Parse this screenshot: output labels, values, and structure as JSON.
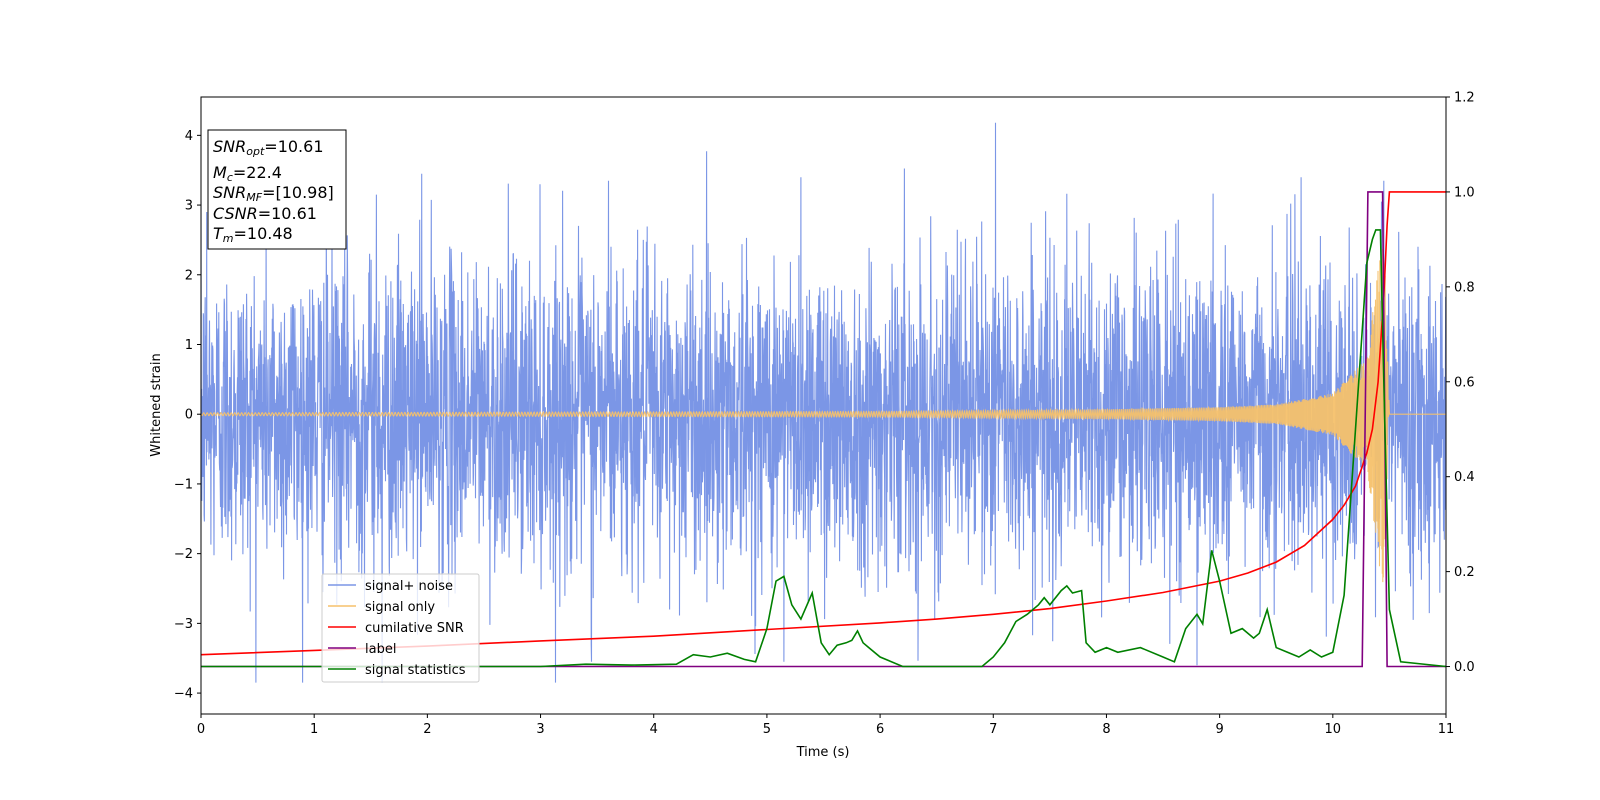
{
  "chart_data": {
    "type": "line",
    "xlabel": "Time (s)",
    "ylabel_left": "Whitened strain",
    "ylabel_right": "",
    "xlim": [
      0,
      11
    ],
    "ylim_left": [
      -4.3,
      4.55
    ],
    "ylim_right": [
      -0.1,
      1.2
    ],
    "x_ticks": [
      0,
      1,
      2,
      3,
      4,
      5,
      6,
      7,
      8,
      9,
      10,
      11
    ],
    "y_ticks_left": [
      -4,
      -3,
      -2,
      -1,
      0,
      1,
      2,
      3,
      4
    ],
    "y_ticks_right": [
      0.0,
      0.2,
      0.4,
      0.6,
      0.8,
      1.0,
      1.2
    ],
    "grid": false,
    "legend_position": "lower-left",
    "info_box": {
      "snr_opt": {
        "base": "SNR",
        "sub": "opt",
        "value": "=10.61"
      },
      "mc": {
        "base": "M",
        "sub": "c",
        "value": "=22.4"
      },
      "snr_mf": {
        "base": "SNR",
        "sub": "MF",
        "value": "=[10.98]"
      },
      "csnr": {
        "base": "CSNR",
        "value": "=10.61"
      },
      "tm": {
        "base": "T",
        "sub": "m",
        "value": "=10.48"
      }
    },
    "series": [
      {
        "name": "signal+ noise",
        "axis": "left",
        "color": "#7b96e6",
        "kind": "noise",
        "amplitude_typical": 1.1,
        "x_range": [
          0,
          11
        ],
        "y_range": [
          -3.85,
          4.18
        ],
        "notable_peaks": [
          {
            "x": 0.05,
            "y": 2.9
          },
          {
            "x": 1.55,
            "y": 3.15
          },
          {
            "x": 1.95,
            "y": 3.45
          },
          {
            "x": 3.6,
            "y": 3.35
          },
          {
            "x": 5.3,
            "y": 3.4
          },
          {
            "x": 7.02,
            "y": 4.18
          },
          {
            "x": 9.72,
            "y": 3.4
          },
          {
            "x": 10.45,
            "y": 3.35
          },
          {
            "x": 1.6,
            "y": -3.85
          },
          {
            "x": 3.45,
            "y": -3.55
          },
          {
            "x": 5.15,
            "y": -3.55
          },
          {
            "x": 8.8,
            "y": -3.6
          }
        ]
      },
      {
        "name": "signal only",
        "axis": "left",
        "color": "#f5c16b",
        "kind": "chirp",
        "envelope": [
          {
            "x": 0,
            "y": 0.02
          },
          {
            "x": 6,
            "y": 0.04
          },
          {
            "x": 8,
            "y": 0.07
          },
          {
            "x": 9,
            "y": 0.1
          },
          {
            "x": 9.5,
            "y": 0.14
          },
          {
            "x": 10.0,
            "y": 0.3
          },
          {
            "x": 10.3,
            "y": 0.8
          },
          {
            "x": 10.45,
            "y": 2.7
          },
          {
            "x": 10.5,
            "y": 0.0
          },
          {
            "x": 11,
            "y": 0.0
          }
        ]
      },
      {
        "name": "cumilative SNR",
        "axis": "right",
        "color": "#ff0000",
        "x": [
          0,
          1,
          2,
          3,
          4,
          5,
          6,
          6.5,
          7,
          7.5,
          8,
          8.5,
          9,
          9.25,
          9.5,
          9.75,
          10,
          10.1,
          10.2,
          10.3,
          10.35,
          10.4,
          10.45,
          10.48,
          10.5,
          10.55,
          11
        ],
        "y": [
          0.025,
          0.034,
          0.043,
          0.054,
          0.064,
          0.078,
          0.092,
          0.1,
          0.11,
          0.122,
          0.138,
          0.156,
          0.18,
          0.197,
          0.22,
          0.255,
          0.31,
          0.34,
          0.38,
          0.45,
          0.5,
          0.6,
          0.78,
          0.93,
          1.0,
          1.0,
          1.0
        ]
      },
      {
        "name": "label",
        "axis": "right",
        "color": "#800080",
        "x": [
          0,
          10.26,
          10.31,
          10.44,
          10.48,
          10.5,
          11
        ],
        "y": [
          0,
          0,
          1.0,
          1.0,
          0,
          0,
          0
        ]
      },
      {
        "name": "signal statistics",
        "axis": "right",
        "color": "#008000",
        "x": [
          0,
          0.3,
          1.0,
          2.0,
          3.0,
          3.4,
          3.8,
          4.2,
          4.35,
          4.5,
          4.65,
          4.8,
          4.9,
          5.0,
          5.08,
          5.15,
          5.22,
          5.3,
          5.4,
          5.48,
          5.55,
          5.62,
          5.7,
          5.75,
          5.8,
          5.85,
          5.9,
          6.0,
          6.2,
          6.5,
          6.9,
          7.0,
          7.1,
          7.2,
          7.3,
          7.4,
          7.45,
          7.5,
          7.6,
          7.65,
          7.7,
          7.78,
          7.82,
          7.9,
          8.0,
          8.1,
          8.3,
          8.5,
          8.6,
          8.7,
          8.8,
          8.85,
          8.93,
          9.0,
          9.1,
          9.2,
          9.3,
          9.35,
          9.42,
          9.5,
          9.6,
          9.7,
          9.8,
          9.9,
          10.0,
          10.1,
          10.2,
          10.3,
          10.35,
          10.38,
          10.42,
          10.46,
          10.5,
          10.6,
          11.0
        ],
        "y": [
          0.0,
          0.0,
          0.0,
          0.0,
          0.0,
          0.005,
          0.003,
          0.005,
          0.025,
          0.02,
          0.028,
          0.015,
          0.01,
          0.08,
          0.18,
          0.19,
          0.13,
          0.1,
          0.155,
          0.05,
          0.025,
          0.045,
          0.05,
          0.055,
          0.075,
          0.05,
          0.04,
          0.02,
          0.0,
          0.0,
          0.0,
          0.02,
          0.05,
          0.095,
          0.11,
          0.13,
          0.145,
          0.13,
          0.16,
          0.17,
          0.155,
          0.16,
          0.05,
          0.03,
          0.04,
          0.03,
          0.04,
          0.02,
          0.01,
          0.08,
          0.11,
          0.09,
          0.245,
          0.18,
          0.07,
          0.08,
          0.06,
          0.07,
          0.12,
          0.04,
          0.03,
          0.02,
          0.035,
          0.02,
          0.03,
          0.15,
          0.5,
          0.85,
          0.9,
          0.92,
          0.92,
          0.5,
          0.12,
          0.01,
          0.0
        ]
      }
    ]
  }
}
